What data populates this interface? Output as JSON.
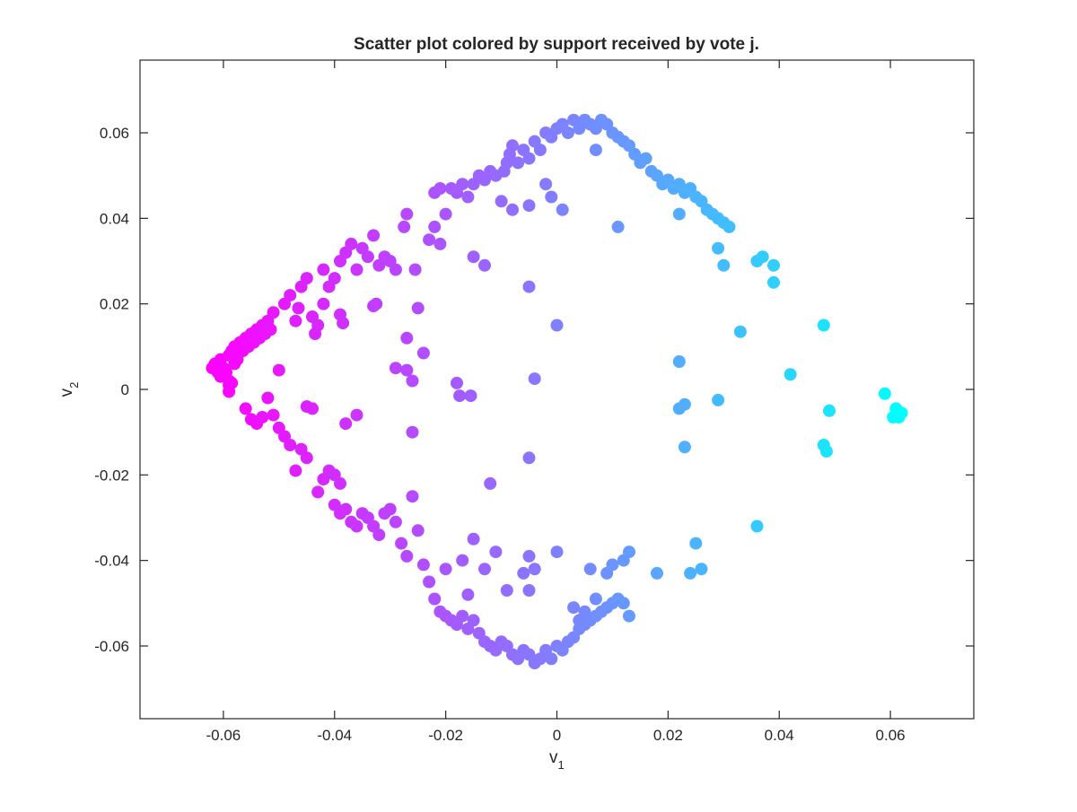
{
  "chart_data": {
    "type": "scatter",
    "title": "Scatter plot colored by support received by vote j.",
    "xlabel": "v",
    "xlabel_sub": "1",
    "ylabel": "v",
    "ylabel_sub": "2",
    "xlim": [
      -0.075,
      0.075
    ],
    "ylim": [
      -0.077,
      0.077
    ],
    "xticks": [
      -0.06,
      -0.04,
      -0.02,
      0,
      0.02,
      0.04,
      0.06
    ],
    "yticks": [
      -0.06,
      -0.04,
      -0.02,
      0,
      0.02,
      0.04,
      0.06
    ],
    "xtick_labels": [
      "-0.06",
      "-0.04",
      "-0.02",
      "0",
      "0.02",
      "0.04",
      "0.06"
    ],
    "ytick_labels": [
      "-0.06",
      "-0.04",
      "-0.02",
      "0",
      "0.02",
      "0.04",
      "0.06"
    ],
    "grid": false,
    "colormap": {
      "low": "#ff00ff",
      "high": "#00ffff"
    },
    "points": [
      [
        -0.062,
        0.005
      ],
      [
        -0.0615,
        0.006
      ],
      [
        -0.061,
        0.004
      ],
      [
        -0.0605,
        0.007
      ],
      [
        -0.06,
        0.005
      ],
      [
        -0.0605,
        0.003
      ],
      [
        -0.059,
        0.008
      ],
      [
        -0.0595,
        0.004
      ],
      [
        -0.059,
        0.002
      ],
      [
        -0.0585,
        0.009
      ],
      [
        -0.058,
        0.006
      ],
      [
        -0.058,
        0.01
      ],
      [
        -0.0575,
        0.007
      ],
      [
        -0.057,
        0.011
      ],
      [
        -0.0565,
        0.009
      ],
      [
        -0.056,
        0.012
      ],
      [
        -0.0555,
        0.01
      ],
      [
        -0.055,
        0.013
      ],
      [
        -0.0545,
        0.011
      ],
      [
        -0.054,
        0.014
      ],
      [
        -0.0535,
        0.012
      ],
      [
        -0.053,
        0.015
      ],
      [
        -0.0525,
        0.013
      ],
      [
        -0.052,
        0.016
      ],
      [
        -0.0515,
        0.014
      ],
      [
        -0.051,
        0.018
      ],
      [
        -0.059,
        0.001
      ],
      [
        -0.0585,
        0.0015
      ],
      [
        -0.0605,
        0.0055
      ],
      [
        -0.0575,
        0.0085
      ],
      [
        -0.05,
        0.0045
      ],
      [
        -0.049,
        0.02
      ],
      [
        -0.048,
        0.022
      ],
      [
        -0.047,
        0.016
      ],
      [
        -0.0465,
        0.019
      ],
      [
        -0.046,
        0.024
      ],
      [
        -0.045,
        0.026
      ],
      [
        -0.044,
        0.017
      ],
      [
        -0.043,
        0.015
      ],
      [
        -0.0435,
        0.013
      ],
      [
        -0.042,
        0.02
      ],
      [
        -0.042,
        0.028
      ],
      [
        -0.041,
        0.024
      ],
      [
        -0.04,
        0.026
      ],
      [
        -0.039,
        0.03
      ],
      [
        -0.039,
        0.0175
      ],
      [
        -0.0385,
        0.0155
      ],
      [
        -0.038,
        0.032
      ],
      [
        -0.037,
        0.034
      ],
      [
        -0.036,
        0.028
      ],
      [
        -0.035,
        0.033
      ],
      [
        -0.034,
        0.031
      ],
      [
        -0.033,
        0.036
      ],
      [
        -0.033,
        0.0195
      ],
      [
        -0.0325,
        0.02
      ],
      [
        -0.032,
        0.029
      ],
      [
        -0.031,
        0.031
      ],
      [
        -0.03,
        0.03
      ],
      [
        -0.029,
        0.028
      ],
      [
        -0.0275,
        0.038
      ],
      [
        -0.027,
        0.041
      ],
      [
        -0.025,
        0.019
      ],
      [
        -0.0255,
        0.028
      ],
      [
        -0.024,
        0.0085
      ],
      [
        -0.023,
        0.035
      ],
      [
        -0.022,
        0.038
      ],
      [
        -0.021,
        0.034
      ],
      [
        -0.02,
        0.041
      ],
      [
        -0.022,
        0.046
      ],
      [
        -0.021,
        0.047
      ],
      [
        -0.019,
        0.047
      ],
      [
        -0.018,
        0.046
      ],
      [
        -0.017,
        0.048
      ],
      [
        -0.016,
        0.045
      ],
      [
        -0.015,
        0.048
      ],
      [
        -0.014,
        0.05
      ],
      [
        -0.013,
        0.049
      ],
      [
        -0.012,
        0.051
      ],
      [
        -0.011,
        0.05
      ],
      [
        -0.0095,
        0.051
      ],
      [
        -0.009,
        0.053
      ],
      [
        -0.0085,
        0.055
      ],
      [
        -0.008,
        0.057
      ],
      [
        -0.007,
        0.053
      ],
      [
        -0.006,
        0.056
      ],
      [
        -0.005,
        0.054
      ],
      [
        -0.004,
        0.058
      ],
      [
        -0.003,
        0.056
      ],
      [
        -0.002,
        0.06
      ],
      [
        -0.001,
        0.059
      ],
      [
        0.0,
        0.061
      ],
      [
        0.001,
        0.062
      ],
      [
        0.002,
        0.06
      ],
      [
        0.003,
        0.063
      ],
      [
        0.004,
        0.061
      ],
      [
        0.005,
        0.063
      ],
      [
        0.006,
        0.062
      ],
      [
        0.007,
        0.061
      ],
      [
        0.008,
        0.063
      ],
      [
        0.009,
        0.062
      ],
      [
        0.01,
        0.06
      ],
      [
        0.011,
        0.059
      ],
      [
        0.012,
        0.058
      ],
      [
        0.013,
        0.057
      ],
      [
        0.014,
        0.055
      ],
      [
        0.015,
        0.053
      ],
      [
        0.016,
        0.054
      ],
      [
        0.017,
        0.051
      ],
      [
        0.018,
        0.05
      ],
      [
        0.019,
        0.048
      ],
      [
        0.02,
        0.049
      ],
      [
        0.021,
        0.047
      ],
      [
        0.022,
        0.048
      ],
      [
        0.023,
        0.046
      ],
      [
        0.024,
        0.047
      ],
      [
        0.025,
        0.045
      ],
      [
        0.026,
        0.044
      ],
      [
        0.027,
        0.042
      ],
      [
        0.028,
        0.041
      ],
      [
        0.029,
        0.04
      ],
      [
        0.03,
        0.039
      ],
      [
        0.031,
        0.038
      ],
      [
        0.029,
        0.033
      ],
      [
        0.03,
        0.029
      ],
      [
        0.036,
        0.03
      ],
      [
        0.037,
        0.031
      ],
      [
        0.039,
        0.029
      ],
      [
        0.039,
        0.025
      ],
      [
        0.022,
        0.041
      ],
      [
        0.011,
        0.038
      ],
      [
        0.007,
        0.056
      ],
      [
        -0.002,
        0.048
      ],
      [
        -0.001,
        0.045
      ],
      [
        0.001,
        0.042
      ],
      [
        -0.005,
        0.043
      ],
      [
        -0.008,
        0.042
      ],
      [
        -0.01,
        0.044
      ],
      [
        -0.013,
        0.029
      ],
      [
        -0.015,
        0.031
      ],
      [
        -0.005,
        0.024
      ],
      [
        0.0,
        0.015
      ],
      [
        -0.027,
        0.012
      ],
      [
        -0.029,
        0.005
      ],
      [
        -0.027,
        0.0045
      ],
      [
        -0.026,
        0.002
      ],
      [
        -0.018,
        0.0015
      ],
      [
        -0.0175,
        -0.0015
      ],
      [
        -0.0155,
        -0.0015
      ],
      [
        -0.004,
        0.0025
      ],
      [
        0.022,
        0.0065
      ],
      [
        0.033,
        0.0135
      ],
      [
        0.042,
        0.0035
      ],
      [
        0.048,
        0.015
      ],
      [
        0.059,
        -0.001
      ],
      [
        0.061,
        -0.0045
      ],
      [
        0.0615,
        -0.0065
      ],
      [
        0.062,
        -0.0055
      ],
      [
        0.0605,
        -0.0065
      ],
      [
        0.049,
        -0.005
      ],
      [
        0.048,
        -0.013
      ],
      [
        0.0485,
        -0.0145
      ],
      [
        0.029,
        -0.0025
      ],
      [
        0.023,
        -0.0035
      ],
      [
        0.022,
        -0.0045
      ],
      [
        0.023,
        -0.0135
      ],
      [
        -0.059,
        -0.0005
      ],
      [
        -0.056,
        -0.0045
      ],
      [
        -0.055,
        -0.007
      ],
      [
        -0.054,
        -0.008
      ],
      [
        -0.053,
        -0.0065
      ],
      [
        -0.052,
        -0.002
      ],
      [
        -0.051,
        -0.006
      ],
      [
        -0.05,
        -0.009
      ],
      [
        -0.049,
        -0.011
      ],
      [
        -0.048,
        -0.013
      ],
      [
        -0.047,
        -0.019
      ],
      [
        -0.046,
        -0.014
      ],
      [
        -0.045,
        -0.016
      ],
      [
        -0.044,
        -0.0045
      ],
      [
        -0.043,
        -0.024
      ],
      [
        -0.042,
        -0.021
      ],
      [
        -0.041,
        -0.019
      ],
      [
        -0.04,
        -0.02
      ],
      [
        -0.039,
        -0.022
      ],
      [
        -0.04,
        -0.027
      ],
      [
        -0.039,
        -0.029
      ],
      [
        -0.038,
        -0.028
      ],
      [
        -0.037,
        -0.031
      ],
      [
        -0.036,
        -0.032
      ],
      [
        -0.035,
        -0.029
      ],
      [
        -0.034,
        -0.03
      ],
      [
        -0.033,
        -0.032
      ],
      [
        -0.032,
        -0.034
      ],
      [
        -0.031,
        -0.029
      ],
      [
        -0.03,
        -0.028
      ],
      [
        -0.029,
        -0.031
      ],
      [
        -0.028,
        -0.036
      ],
      [
        -0.027,
        -0.039
      ],
      [
        -0.026,
        -0.025
      ],
      [
        -0.025,
        -0.033
      ],
      [
        -0.024,
        -0.041
      ],
      [
        -0.023,
        -0.045
      ],
      [
        -0.022,
        -0.049
      ],
      [
        -0.021,
        -0.052
      ],
      [
        -0.02,
        -0.053
      ],
      [
        -0.019,
        -0.054
      ],
      [
        -0.018,
        -0.055
      ],
      [
        -0.017,
        -0.053
      ],
      [
        -0.016,
        -0.056
      ],
      [
        -0.015,
        -0.054
      ],
      [
        -0.014,
        -0.057
      ],
      [
        -0.013,
        -0.059
      ],
      [
        -0.012,
        -0.06
      ],
      [
        -0.011,
        -0.061
      ],
      [
        -0.01,
        -0.059
      ],
      [
        -0.009,
        -0.06
      ],
      [
        -0.008,
        -0.062
      ],
      [
        -0.007,
        -0.063
      ],
      [
        -0.006,
        -0.061
      ],
      [
        -0.005,
        -0.062
      ],
      [
        -0.004,
        -0.064
      ],
      [
        -0.003,
        -0.063
      ],
      [
        -0.002,
        -0.061
      ],
      [
        -0.001,
        -0.063
      ],
      [
        0.0,
        -0.06
      ],
      [
        0.001,
        -0.061
      ],
      [
        0.002,
        -0.059
      ],
      [
        0.003,
        -0.058
      ],
      [
        0.004,
        -0.056
      ],
      [
        0.005,
        -0.055
      ],
      [
        0.006,
        -0.054
      ],
      [
        0.007,
        -0.053
      ],
      [
        0.008,
        -0.052
      ],
      [
        0.009,
        -0.051
      ],
      [
        0.01,
        -0.05
      ],
      [
        0.011,
        -0.049
      ],
      [
        0.012,
        -0.05
      ],
      [
        0.013,
        -0.053
      ],
      [
        0.003,
        -0.051
      ],
      [
        0.005,
        -0.052
      ],
      [
        0.007,
        -0.049
      ],
      [
        0.004,
        -0.054
      ],
      [
        -0.005,
        -0.047
      ],
      [
        -0.009,
        -0.047
      ],
      [
        -0.006,
        -0.043
      ],
      [
        -0.004,
        -0.042
      ],
      [
        -0.005,
        -0.039
      ],
      [
        0.0,
        -0.038
      ],
      [
        0.006,
        -0.042
      ],
      [
        0.009,
        -0.043
      ],
      [
        0.01,
        -0.041
      ],
      [
        0.012,
        -0.04
      ],
      [
        0.013,
        -0.038
      ],
      [
        0.018,
        -0.043
      ],
      [
        0.024,
        -0.043
      ],
      [
        0.026,
        -0.042
      ],
      [
        0.025,
        -0.036
      ],
      [
        0.036,
        -0.032
      ],
      [
        -0.011,
        -0.038
      ],
      [
        -0.013,
        -0.042
      ],
      [
        -0.015,
        -0.035
      ],
      [
        -0.017,
        -0.04
      ],
      [
        -0.016,
        -0.048
      ],
      [
        -0.02,
        -0.042
      ],
      [
        -0.012,
        -0.022
      ],
      [
        -0.005,
        -0.016
      ],
      [
        -0.026,
        -0.01
      ],
      [
        -0.038,
        -0.008
      ],
      [
        -0.045,
        -0.004
      ],
      [
        -0.036,
        -0.006
      ]
    ]
  }
}
